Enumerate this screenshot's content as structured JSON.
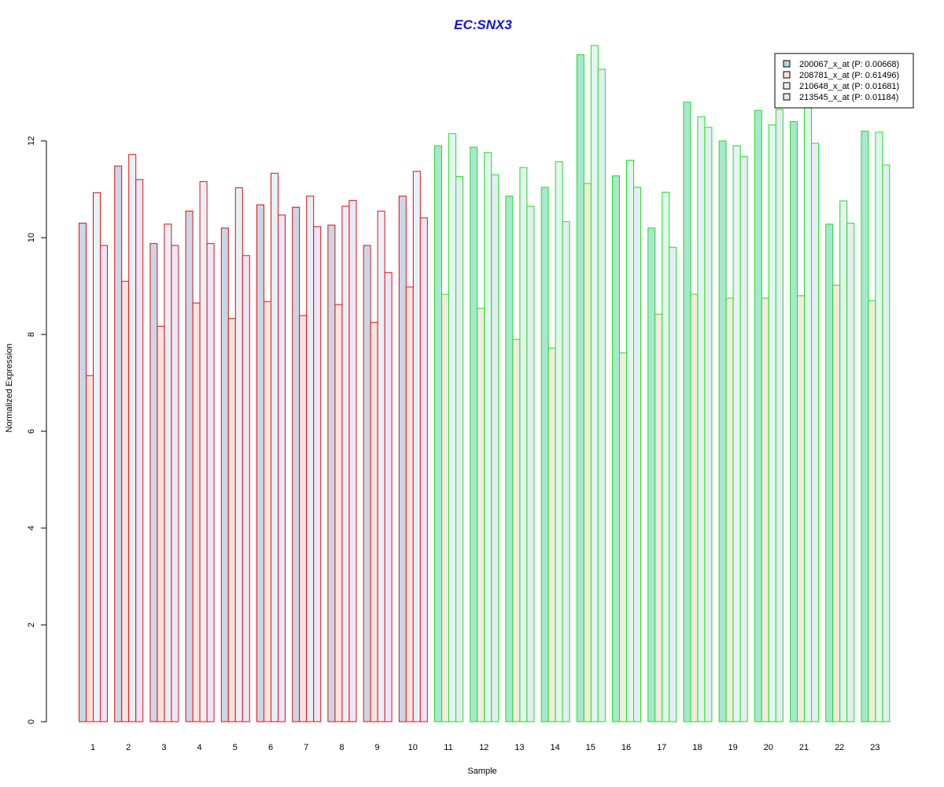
{
  "chart_data": {
    "type": "bar",
    "title": "EC:SNX3",
    "xlabel": "Sample",
    "ylabel": "Normalized Expression",
    "ylim": [
      0,
      14
    ],
    "yticks": [
      0,
      2,
      4,
      6,
      8,
      10,
      12
    ],
    "grid": false,
    "legend_position": "top-right",
    "categories": [
      "1",
      "2",
      "3",
      "4",
      "5",
      "6",
      "7",
      "8",
      "9",
      "10",
      "11",
      "12",
      "13",
      "14",
      "15",
      "16",
      "17",
      "18",
      "19",
      "20",
      "21",
      "22",
      "23"
    ],
    "group_outline_colors": [
      "#dd1111",
      "#dd1111",
      "#dd1111",
      "#dd1111",
      "#dd1111",
      "#dd1111",
      "#dd1111",
      "#dd1111",
      "#dd1111",
      "#dd1111",
      "#22dd22",
      "#22dd22",
      "#22dd22",
      "#22dd22",
      "#22dd22",
      "#22dd22",
      "#22dd22",
      "#22dd22",
      "#22dd22",
      "#22dd22",
      "#22dd22",
      "#22dd22",
      "#22dd22"
    ],
    "series": [
      {
        "name": "200067_x_at (P: 0.00668)",
        "color_group1": "#c9d6e6",
        "color_group2": "#a8e6cf",
        "legend_color": "#b7d4e4",
        "values": [
          10.3,
          11.48,
          9.88,
          10.55,
          10.2,
          10.68,
          10.63,
          10.26,
          9.84,
          10.86,
          11.9,
          11.87,
          10.86,
          11.04,
          13.78,
          11.28,
          10.2,
          12.8,
          12.0,
          12.63,
          12.4,
          10.28,
          12.2
        ]
      },
      {
        "name": "208781_x_at (P: 0.61496)",
        "color_group1": "#fde3de",
        "color_group2": "#f1ecdb",
        "legend_color": "#fde0d8",
        "values": [
          7.15,
          9.1,
          8.17,
          8.65,
          8.33,
          8.68,
          8.39,
          8.62,
          8.25,
          8.98,
          8.83,
          8.54,
          7.9,
          7.72,
          11.12,
          7.62,
          8.42,
          8.83,
          8.75,
          8.75,
          8.8,
          9.02,
          8.7
        ]
      },
      {
        "name": "210648_x_at (P: 0.01681)",
        "color_group1": "#e9f1f8",
        "color_group2": "#e2f6ef",
        "legend_color": "#e2f2ec",
        "values": [
          10.93,
          11.72,
          10.28,
          11.16,
          11.03,
          11.33,
          10.86,
          10.65,
          10.55,
          11.37,
          12.15,
          11.76,
          11.45,
          11.57,
          13.97,
          11.6,
          10.94,
          12.5,
          11.9,
          12.33,
          12.68,
          10.76,
          12.18
        ]
      },
      {
        "name": "213545_x_at (P: 0.01184)",
        "color_group1": "#ece6f6",
        "color_group2": "#e5edf4",
        "legend_color": "#e6e6f6",
        "values": [
          9.84,
          11.2,
          9.84,
          9.88,
          9.63,
          10.47,
          10.23,
          10.77,
          9.28,
          10.41,
          11.26,
          11.3,
          10.65,
          10.33,
          13.48,
          11.04,
          9.8,
          12.28,
          11.68,
          12.65,
          11.95,
          10.3,
          11.5
        ]
      }
    ]
  },
  "colors": {
    "title": "#1111dd",
    "axis": "#000000",
    "legend_border": "#000000"
  }
}
